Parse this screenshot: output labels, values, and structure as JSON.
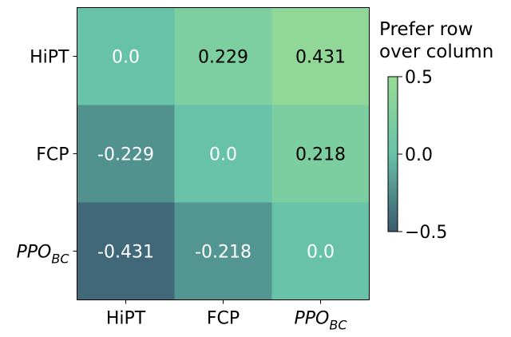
{
  "chart_data": {
    "type": "heatmap",
    "rows": [
      {
        "name": "HiPT",
        "sub": ""
      },
      {
        "name": "FCP",
        "sub": ""
      },
      {
        "name": "PPO",
        "sub": "BC"
      }
    ],
    "columns": [
      {
        "name": "HiPT",
        "sub": ""
      },
      {
        "name": "FCP",
        "sub": ""
      },
      {
        "name": "PPO",
        "sub": "BC"
      }
    ],
    "values": [
      [
        0.0,
        0.229,
        0.431
      ],
      [
        -0.229,
        0.0,
        0.218
      ],
      [
        -0.431,
        -0.218,
        0.0
      ]
    ],
    "cell_labels": [
      [
        "0.0",
        "0.229",
        "0.431"
      ],
      [
        "-0.229",
        "0.0",
        "0.218"
      ],
      [
        "-0.431",
        "-0.218",
        "0.0"
      ]
    ],
    "colorbar": {
      "title_lines": [
        "Prefer row",
        "over column"
      ],
      "ticks": [
        {
          "value": 0.5,
          "label": "0.5"
        },
        {
          "value": 0.0,
          "label": "0.0"
        },
        {
          "value": -0.5,
          "label": "−0.5"
        }
      ],
      "range": [
        -0.5,
        0.5
      ]
    },
    "colormap": {
      "low": "#3a5a70",
      "mid": "#67c2a8",
      "high": "#98dc96"
    },
    "text_colors": {
      "dark": "#000000",
      "light": "#ffffff"
    }
  }
}
